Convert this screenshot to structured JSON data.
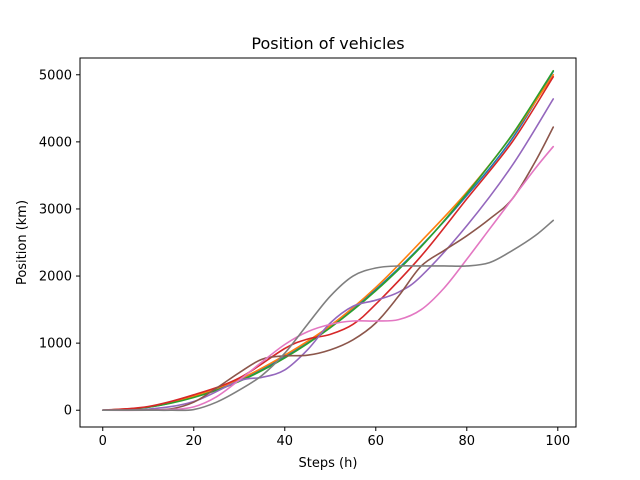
{
  "chart_data": {
    "type": "line",
    "title": "Position of vehicles",
    "xlabel": "Steps (h)",
    "ylabel": "Position (km)",
    "xlim": [
      -5,
      104
    ],
    "ylim": [
      -250,
      5250
    ],
    "xticks": [
      0,
      20,
      40,
      60,
      80,
      100
    ],
    "yticks": [
      0,
      1000,
      2000,
      3000,
      4000,
      5000
    ],
    "grid": false,
    "legend": "none",
    "series": [
      {
        "color": "#1f77b4",
        "points": [
          [
            0,
            0
          ],
          [
            10,
            45
          ],
          [
            20,
            200
          ],
          [
            30,
            450
          ],
          [
            40,
            800
          ],
          [
            50,
            1250
          ],
          [
            60,
            1800
          ],
          [
            70,
            2450
          ],
          [
            80,
            3200
          ],
          [
            90,
            4050
          ],
          [
            99,
            5050
          ]
        ]
      },
      {
        "color": "#ff7f0e",
        "points": [
          [
            0,
            0
          ],
          [
            10,
            50
          ],
          [
            20,
            210
          ],
          [
            30,
            460
          ],
          [
            40,
            820
          ],
          [
            50,
            1260
          ],
          [
            60,
            1830
          ],
          [
            70,
            2520
          ],
          [
            80,
            3250
          ],
          [
            90,
            4100
          ],
          [
            99,
            5000
          ]
        ]
      },
      {
        "color": "#2ca02c",
        "points": [
          [
            0,
            0
          ],
          [
            10,
            45
          ],
          [
            20,
            190
          ],
          [
            30,
            430
          ],
          [
            40,
            780
          ],
          [
            50,
            1230
          ],
          [
            60,
            1780
          ],
          [
            70,
            2440
          ],
          [
            80,
            3230
          ],
          [
            90,
            4110
          ],
          [
            99,
            5060
          ]
        ]
      },
      {
        "color": "#d62728",
        "points": [
          [
            0,
            0
          ],
          [
            10,
            55
          ],
          [
            20,
            230
          ],
          [
            30,
            480
          ],
          [
            40,
            920
          ],
          [
            45,
            1060
          ],
          [
            50,
            1130
          ],
          [
            55,
            1280
          ],
          [
            60,
            1580
          ],
          [
            70,
            2300
          ],
          [
            80,
            3150
          ],
          [
            90,
            4000
          ],
          [
            99,
            4970
          ]
        ]
      },
      {
        "color": "#9467bd",
        "points": [
          [
            0,
            0
          ],
          [
            10,
            15
          ],
          [
            20,
            130
          ],
          [
            30,
            440
          ],
          [
            35,
            490
          ],
          [
            40,
            600
          ],
          [
            45,
            900
          ],
          [
            50,
            1300
          ],
          [
            55,
            1550
          ],
          [
            60,
            1640
          ],
          [
            65,
            1760
          ],
          [
            70,
            2000
          ],
          [
            80,
            2750
          ],
          [
            90,
            3650
          ],
          [
            99,
            4640
          ]
        ]
      },
      {
        "color": "#8c564b",
        "points": [
          [
            0,
            0
          ],
          [
            10,
            5
          ],
          [
            15,
            20
          ],
          [
            20,
            120
          ],
          [
            25,
            330
          ],
          [
            30,
            560
          ],
          [
            35,
            760
          ],
          [
            40,
            810
          ],
          [
            45,
            820
          ],
          [
            50,
            900
          ],
          [
            55,
            1050
          ],
          [
            60,
            1300
          ],
          [
            65,
            1700
          ],
          [
            70,
            2150
          ],
          [
            75,
            2380
          ],
          [
            80,
            2600
          ],
          [
            85,
            2850
          ],
          [
            90,
            3150
          ],
          [
            95,
            3700
          ],
          [
            99,
            4220
          ]
        ]
      },
      {
        "color": "#e377c2",
        "points": [
          [
            0,
            0
          ],
          [
            10,
            0
          ],
          [
            15,
            10
          ],
          [
            20,
            50
          ],
          [
            25,
            200
          ],
          [
            30,
            450
          ],
          [
            35,
            720
          ],
          [
            40,
            980
          ],
          [
            45,
            1170
          ],
          [
            50,
            1280
          ],
          [
            55,
            1330
          ],
          [
            60,
            1330
          ],
          [
            65,
            1350
          ],
          [
            70,
            1500
          ],
          [
            75,
            1820
          ],
          [
            80,
            2250
          ],
          [
            85,
            2700
          ],
          [
            90,
            3150
          ],
          [
            95,
            3600
          ],
          [
            99,
            3930
          ]
        ]
      },
      {
        "color": "#7f7f7f",
        "points": [
          [
            0,
            0
          ],
          [
            10,
            0
          ],
          [
            15,
            0
          ],
          [
            20,
            10
          ],
          [
            25,
            120
          ],
          [
            30,
            300
          ],
          [
            35,
            520
          ],
          [
            40,
            850
          ],
          [
            45,
            1280
          ],
          [
            50,
            1700
          ],
          [
            55,
            2000
          ],
          [
            60,
            2120
          ],
          [
            65,
            2150
          ],
          [
            70,
            2150
          ],
          [
            75,
            2150
          ],
          [
            80,
            2150
          ],
          [
            85,
            2200
          ],
          [
            90,
            2380
          ],
          [
            95,
            2600
          ],
          [
            99,
            2830
          ]
        ]
      }
    ]
  }
}
